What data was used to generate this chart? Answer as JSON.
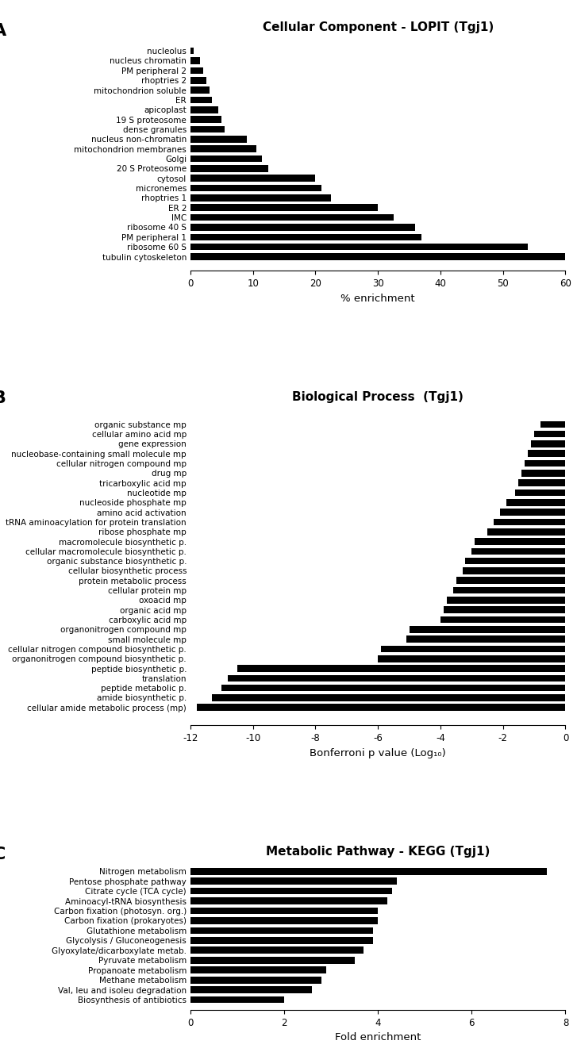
{
  "panel_A": {
    "title": "Cellular Component - LOPIT (Tgj1)",
    "categories": [
      "nucleolus",
      "nucleus chromatin",
      "PM peripheral 2",
      "rhoptries 2",
      "mitochondrion soluble",
      "ER",
      "apicoplast",
      "19 S proteosome",
      "dense granules",
      "nucleus non-chromatin",
      "mitochondrion membranes",
      "Golgi",
      "20 S Proteosome",
      "cytosol",
      "micronemes",
      "rhoptries 1",
      "ER 2",
      "IMC",
      "ribosome 40 S",
      "PM peripheral 1",
      "ribosome 60 S",
      "tubulin cytoskeleton"
    ],
    "values": [
      0.5,
      1.5,
      2.0,
      2.5,
      3.0,
      3.5,
      4.5,
      5.0,
      5.5,
      9.0,
      10.5,
      11.5,
      12.5,
      20.0,
      21.0,
      22.5,
      30.0,
      32.5,
      36.0,
      37.0,
      54.0,
      60.0
    ],
    "xlabel": "% enrichment",
    "xlim": [
      0,
      60
    ],
    "xticks": [
      0,
      10,
      20,
      30,
      40,
      50,
      60
    ],
    "bar_color": "#000000"
  },
  "panel_B": {
    "title": "Biological Process  (Tgj1)",
    "categories": [
      "organic substance mp",
      "cellular amino acid mp",
      "gene expression",
      "nucleobase-containing small molecule mp",
      "cellular nitrogen compound mp",
      "drug mp",
      "tricarboxylic acid mp",
      "nucleotide mp",
      "nucleoside phosphate mp",
      "amino acid activation",
      "tRNA aminoacylation for protein translation",
      "ribose phosphate mp",
      "macromolecule biosynthetic p.",
      "cellular macromolecule biosynthetic p.",
      "organic substance biosynthetic p.",
      "cellular biosynthetic process",
      "protein metabolic process",
      "cellular protein mp",
      "oxoacid mp",
      "organic acid mp",
      "carboxylic acid mp",
      "organonitrogen compound mp",
      "small molecule mp",
      "cellular nitrogen compound biosynthetic p.",
      "organonitrogen compound biosynthetic p.",
      "peptide biosynthetic p.",
      "translation",
      "peptide metabolic p.",
      "amide biosynthetic p.",
      "cellular amide metabolic process (mp)"
    ],
    "values": [
      -0.8,
      -1.0,
      -1.1,
      -1.2,
      -1.3,
      -1.4,
      -1.5,
      -1.6,
      -1.9,
      -2.1,
      -2.3,
      -2.5,
      -2.9,
      -3.0,
      -3.2,
      -3.3,
      -3.5,
      -3.6,
      -3.8,
      -3.9,
      -4.0,
      -5.0,
      -5.1,
      -5.9,
      -6.0,
      -10.5,
      -10.8,
      -11.0,
      -11.3,
      -11.8
    ],
    "xlabel": "Bonferroni p value (Log₁₀)",
    "xlim": [
      -12,
      0
    ],
    "xticks": [
      -12,
      -10,
      -8,
      -6,
      -4,
      -2,
      0
    ],
    "bar_color": "#000000"
  },
  "panel_C": {
    "title": "Metabolic Pathway - KEGG (Tgj1)",
    "categories": [
      "Nitrogen metabolism",
      "Pentose phosphate pathway",
      "Citrate cycle (TCA cycle)",
      "Aminoacyl-tRNA biosynthesis",
      "Carbon fixation (photosyn. org.)",
      "Carbon fixation (prokaryotes)",
      "Glutathione metabolism",
      "Glycolysis / Gluconeogenesis",
      "Glyoxylate/dicarboxylate metab.",
      "Pyruvate metabolism",
      "Propanoate metabolism",
      "Methane metabolism",
      "Val, leu and isoleu degradation",
      "Biosynthesis of antibiotics"
    ],
    "values": [
      7.6,
      4.4,
      4.3,
      4.2,
      4.0,
      4.0,
      3.9,
      3.9,
      3.7,
      3.5,
      2.9,
      2.8,
      2.6,
      2.0
    ],
    "xlabel": "Fold enrichment",
    "xlim": [
      0,
      8
    ],
    "xticks": [
      0,
      2,
      4,
      6,
      8
    ],
    "bar_color": "#000000"
  },
  "figure_bg": "#ffffff",
  "panel_labels": [
    "A",
    "B",
    "C"
  ],
  "label_fontsize": 16,
  "title_fontsize": 11,
  "tick_fontsize": 8.5,
  "axis_label_fontsize": 9.5,
  "category_fontsize": 7.5
}
